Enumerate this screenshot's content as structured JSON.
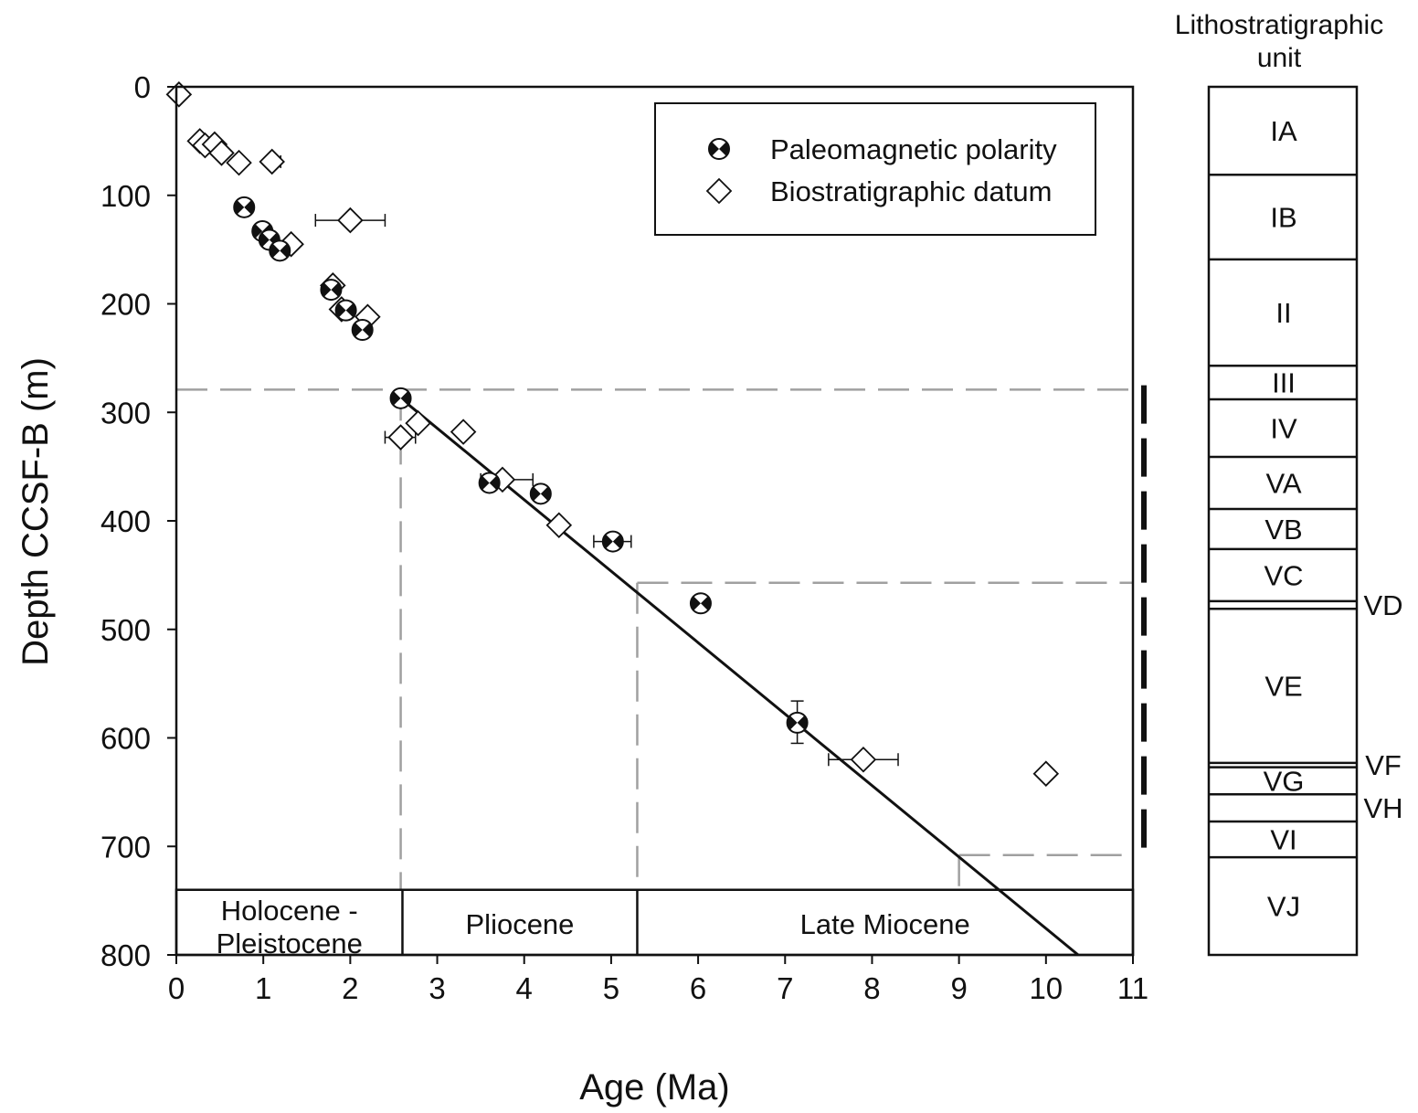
{
  "chart_data": {
    "type": "scatter",
    "xlabel": "Age (Ma)",
    "ylabel": "Depth CCSF-B (m)",
    "xlim": [
      0,
      11
    ],
    "ylim": [
      0,
      800
    ],
    "y_inverted": true,
    "xticks": [
      "0",
      "1",
      "2",
      "3",
      "4",
      "5",
      "6",
      "7",
      "8",
      "9",
      "10",
      "11"
    ],
    "yticks": [
      "0",
      "100",
      "200",
      "300",
      "400",
      "500",
      "600",
      "700",
      "800"
    ],
    "legend": {
      "placement": "top-right",
      "entries": [
        "Paleomagnetic polarity",
        "Biostratigraphic datum"
      ]
    },
    "series": [
      {
        "name": "Paleomagnetic polarity",
        "marker": "bowtie-circle",
        "points": [
          {
            "x": 0.78,
            "y": 111
          },
          {
            "x": 0.99,
            "y": 133
          },
          {
            "x": 1.07,
            "y": 141
          },
          {
            "x": 1.19,
            "y": 151
          },
          {
            "x": 1.78,
            "y": 187
          },
          {
            "x": 1.95,
            "y": 206
          },
          {
            "x": 2.14,
            "y": 224
          },
          {
            "x": 2.58,
            "y": 287
          },
          {
            "x": 3.6,
            "y": 365
          },
          {
            "x": 4.19,
            "y": 375
          },
          {
            "x": 5.02,
            "y": 419,
            "xerr": [
              4.8,
              5.23
            ]
          },
          {
            "x": 6.03,
            "y": 476
          },
          {
            "x": 7.14,
            "y": 586,
            "yerr": [
              566,
              605
            ]
          }
        ]
      },
      {
        "name": "Biostratigraphic datum",
        "marker": "open-diamond",
        "points": [
          {
            "x": 0.03,
            "y": 7
          },
          {
            "x": 0.27,
            "y": 50
          },
          {
            "x": 0.33,
            "y": 54
          },
          {
            "x": 0.44,
            "y": 53
          },
          {
            "x": 0.52,
            "y": 61
          },
          {
            "x": 0.72,
            "y": 70
          },
          {
            "x": 1.1,
            "y": 69,
            "xerr": [
              1.05,
              1.2
            ]
          },
          {
            "x": 1.32,
            "y": 145
          },
          {
            "x": 2.0,
            "y": 123,
            "xerr": [
              1.6,
              2.4
            ]
          },
          {
            "x": 1.8,
            "y": 183
          },
          {
            "x": 1.9,
            "y": 205
          },
          {
            "x": 2.2,
            "y": 212
          },
          {
            "x": 2.58,
            "y": 323,
            "xerr": [
              2.4,
              2.75
            ]
          },
          {
            "x": 2.78,
            "y": 310
          },
          {
            "x": 3.3,
            "y": 318
          },
          {
            "x": 3.75,
            "y": 362,
            "xerr": [
              3.5,
              4.1
            ]
          },
          {
            "x": 4.4,
            "y": 404
          },
          {
            "x": 7.9,
            "y": 620,
            "xerr": [
              7.5,
              8.3
            ]
          },
          {
            "x": 10.0,
            "y": 633
          }
        ]
      }
    ],
    "trend_line": {
      "x": [
        2.58,
        10.37
      ],
      "y": [
        287,
        800
      ]
    },
    "dashed_guides": [
      {
        "x0": 0,
        "x1": 11,
        "y": 279,
        "vx": 2.58
      },
      {
        "x0": 5.3,
        "x1": 11,
        "y": 457,
        "vx": 5.3
      },
      {
        "x0": 9.0,
        "x1": 11,
        "y": 708,
        "vx": 9.0
      }
    ],
    "vertical_dash_bar": {
      "x": 11.1,
      "y0": 275,
      "y1": 707
    },
    "epochs": {
      "band_top": 740,
      "band_bottom": 800,
      "items": [
        {
          "lines": [
            "Holocene -",
            "Pleistocene"
          ],
          "x0": 0,
          "x1": 2.6
        },
        {
          "lines": [
            "Pliocene"
          ],
          "x0": 2.6,
          "x1": 5.3
        },
        {
          "lines": [
            "Late Miocene"
          ],
          "x0": 5.3,
          "x1": 11
        }
      ]
    },
    "litho_column": {
      "title_lines": [
        "Lithostratigraphic",
        "unit"
      ],
      "units": [
        {
          "label": "IA",
          "top": 0,
          "bottom": 81,
          "side": false
        },
        {
          "label": "IB",
          "top": 81,
          "bottom": 159,
          "side": false
        },
        {
          "label": "II",
          "top": 159,
          "bottom": 257,
          "side": false
        },
        {
          "label": "III",
          "top": 257,
          "bottom": 288,
          "side": false
        },
        {
          "label": "IV",
          "top": 288,
          "bottom": 341,
          "side": false
        },
        {
          "label": "VA",
          "top": 341,
          "bottom": 389,
          "side": false
        },
        {
          "label": "VB",
          "top": 389,
          "bottom": 426,
          "side": false
        },
        {
          "label": "VC",
          "top": 426,
          "bottom": 474,
          "side": false
        },
        {
          "label": "VD",
          "top": 474,
          "bottom": 481,
          "side": true
        },
        {
          "label": "VE",
          "top": 481,
          "bottom": 623,
          "side": false
        },
        {
          "label": "VF",
          "top": 623,
          "bottom": 627,
          "side": true
        },
        {
          "label": "VG",
          "top": 627,
          "bottom": 652,
          "side": false
        },
        {
          "label": "VH",
          "top": 652,
          "bottom": 677,
          "side": true
        },
        {
          "label": "VI",
          "top": 677,
          "bottom": 710,
          "side": false
        },
        {
          "label": "VJ",
          "top": 710,
          "bottom": 800,
          "side": false
        }
      ]
    }
  }
}
